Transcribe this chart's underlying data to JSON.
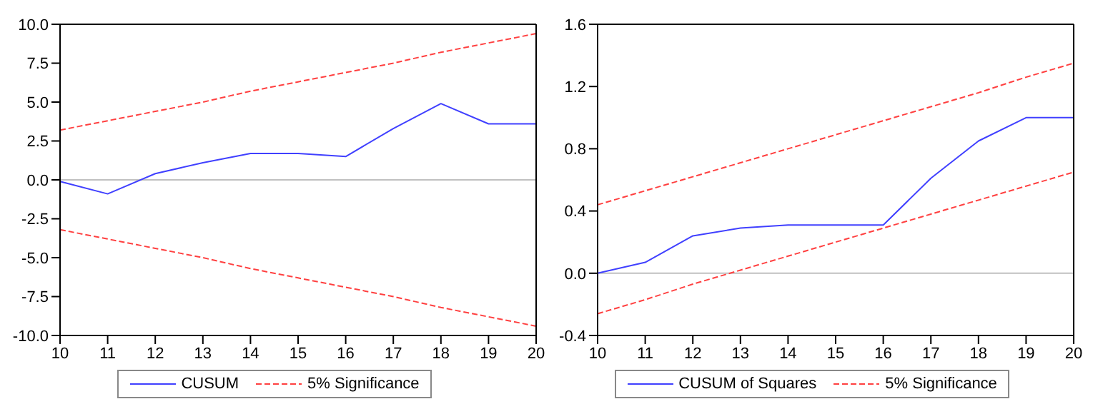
{
  "chart_data": [
    {
      "type": "line",
      "categories": [
        "10",
        "11",
        "12",
        "13",
        "14",
        "15",
        "16",
        "17",
        "18",
        "19",
        "20"
      ],
      "series": [
        {
          "name": "CUSUM",
          "color": "#4040ff",
          "line_style": "solid",
          "values": [
            -0.1,
            -0.9,
            0.4,
            1.1,
            1.7,
            1.7,
            1.5,
            3.3,
            4.9,
            3.6,
            3.6
          ]
        },
        {
          "name": "5% Significance",
          "color": "#ff4040",
          "line_style": "dashed",
          "values": [
            3.2,
            3.8,
            4.4,
            5.0,
            5.7,
            6.3,
            6.9,
            7.5,
            8.2,
            8.8,
            9.4
          ]
        },
        {
          "color": "#ff4040",
          "line_style": "dashed",
          "values": [
            -3.2,
            -3.8,
            -4.4,
            -5.0,
            -5.7,
            -6.3,
            -6.9,
            -7.5,
            -8.2,
            -8.8,
            -9.4
          ]
        }
      ],
      "ylim": [
        -10,
        10
      ],
      "yticks": [
        {
          "value": -10,
          "label": "-10.0"
        },
        -7.5,
        {
          "value": -5,
          "label": "-5.0"
        },
        -2.5,
        {
          "value": 0,
          "label": "0.0"
        },
        2.5,
        {
          "value": 5,
          "label": "5.0"
        },
        7.5,
        {
          "value": 10,
          "label": "10.0"
        }
      ],
      "ref_lines": [
        {
          "axis": "y",
          "value": 0,
          "color": "#c0c0c0"
        }
      ],
      "grid": false,
      "legend": "bottom",
      "marker": "none"
    },
    {
      "type": "line",
      "categories": [
        "10",
        "11",
        "12",
        "13",
        "14",
        "15",
        "16",
        "17",
        "18",
        "19",
        "20"
      ],
      "series": [
        {
          "name": "CUSUM of Squares",
          "color": "#4040ff",
          "line_style": "solid",
          "values": [
            0.0,
            0.07,
            0.24,
            0.29,
            0.31,
            0.31,
            0.31,
            0.61,
            0.85,
            1.0,
            1.0
          ]
        },
        {
          "name": "5% Significance",
          "color": "#ff4040",
          "line_style": "dashed",
          "values": [
            0.44,
            0.53,
            0.62,
            0.71,
            0.8,
            0.89,
            0.98,
            1.07,
            1.16,
            1.26,
            1.35
          ]
        },
        {
          "color": "#ff4040",
          "line_style": "dashed",
          "values": [
            -0.26,
            -0.17,
            -0.07,
            0.02,
            0.11,
            0.2,
            0.29,
            0.38,
            0.47,
            0.56,
            0.65
          ]
        }
      ],
      "ylim": [
        -0.4,
        1.6
      ],
      "yticks": [
        -0.4,
        {
          "value": 0,
          "label": "0.0"
        },
        0.4,
        0.8,
        1.2,
        1.6
      ],
      "ref_lines": [
        {
          "axis": "y",
          "value": 0,
          "color": "#c0c0c0"
        }
      ],
      "grid": false,
      "legend": "bottom",
      "marker": "none"
    }
  ]
}
